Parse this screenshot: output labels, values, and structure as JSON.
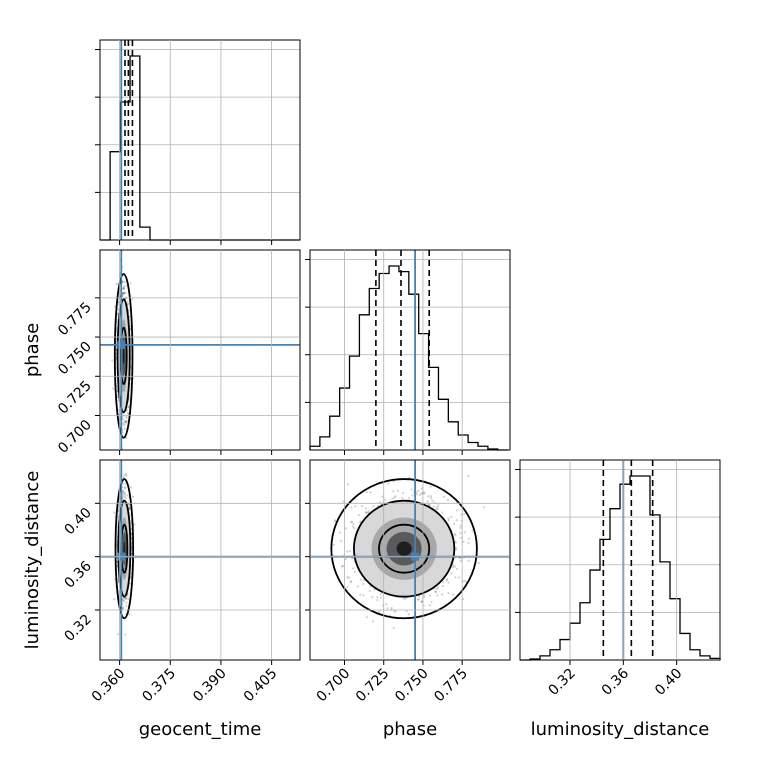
{
  "chart_data": {
    "type": "corner",
    "parameters": [
      "geocent_time",
      "phase",
      "luminosity_distance"
    ],
    "truths": [
      0.3605,
      0.745,
      0.36
    ],
    "quantiles": {
      "geocent_time": [
        0.3616,
        0.3626,
        0.3638
      ],
      "phase": [
        0.72,
        0.736,
        0.754
      ],
      "luminosity_distance": [
        0.345,
        0.366,
        0.382
      ]
    },
    "ranges": {
      "geocent_time": [
        0.3542,
        0.4134
      ],
      "phase": [
        0.678,
        0.8055
      ],
      "luminosity_distance": [
        0.2825,
        0.4325
      ]
    },
    "ticks": {
      "geocent_time": [
        "0.360",
        "0.375",
        "0.390",
        "0.405"
      ],
      "phase": [
        "0.700",
        "0.725",
        "0.750",
        "0.775"
      ],
      "luminosity_distance": [
        "0.32",
        "0.36",
        "0.40"
      ]
    },
    "grid": true,
    "histograms": {
      "geocent_time": {
        "edges": [
          0.3542,
          0.3572,
          0.3601,
          0.3631,
          0.366,
          0.369,
          0.372,
          0.4134
        ],
        "counts": [
          0,
          4.8,
          7.5,
          10.0,
          0.7,
          0,
          0
        ]
      },
      "phase": {
        "edges": [
          0.678,
          0.6843,
          0.6906,
          0.6969,
          0.7032,
          0.7095,
          0.7158,
          0.7221,
          0.7284,
          0.7347,
          0.741,
          0.7473,
          0.7536,
          0.7599,
          0.7662,
          0.7725,
          0.7788,
          0.7851,
          0.7914,
          0.7977,
          0.804
        ],
        "counts": [
          0.2,
          0.7,
          1.8,
          3.3,
          5.0,
          7.2,
          8.6,
          9.4,
          9.8,
          9.5,
          8.3,
          6.2,
          4.4,
          2.7,
          1.5,
          0.8,
          0.4,
          0.2,
          0.05,
          0
        ]
      },
      "luminosity_distance": {
        "edges": [
          0.2825,
          0.29,
          0.2975,
          0.305,
          0.3125,
          0.32,
          0.3275,
          0.335,
          0.3425,
          0.35,
          0.3575,
          0.365,
          0.3725,
          0.38,
          0.3875,
          0.395,
          0.4025,
          0.41,
          0.4175,
          0.425,
          0.4325
        ],
        "counts": [
          0,
          0.05,
          0.2,
          0.5,
          1.0,
          1.8,
          2.8,
          4.4,
          5.9,
          7.4,
          8.6,
          9.0,
          9.0,
          7.1,
          4.8,
          3.0,
          1.3,
          0.5,
          0.2,
          0.08
        ]
      }
    },
    "samples_2d": {
      "phase_vs_geocent_time": {
        "center": [
          0.3612,
          0.738
        ],
        "spread": [
          0.0009,
          0.018
        ]
      },
      "luminosity_distance_vs_geocent_time": {
        "center": [
          0.3614,
          0.366
        ],
        "spread": [
          0.0009,
          0.018
        ]
      },
      "luminosity_distance_vs_phase": {
        "center": [
          0.738,
          0.366
        ],
        "spread": [
          0.016,
          0.018
        ]
      }
    },
    "contour_levels": [
      0.39,
      0.86,
      0.99
    ],
    "colors": {
      "truth": "#4682b4",
      "hist": "#000000",
      "grid": "#b0b0b0",
      "points": "#000000"
    }
  }
}
